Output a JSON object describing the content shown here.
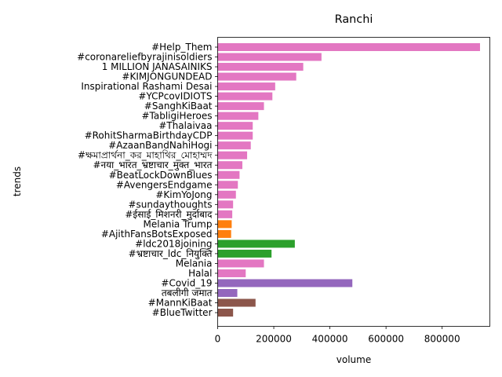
{
  "chart_data": {
    "type": "bar",
    "orientation": "horizontal",
    "title": "Ranchi",
    "xlabel": "volume",
    "ylabel": "trends",
    "xlim": [
      0,
      970000
    ],
    "xticks": [
      0,
      200000,
      400000,
      600000,
      800000
    ],
    "xtick_labels": [
      "0",
      "200000",
      "400000",
      "600000",
      "800000"
    ],
    "grid": false,
    "bars": [
      {
        "label": "#Help_Them",
        "value": 935000,
        "color": "#e377c2"
      },
      {
        "label": "#coronareliefbyrajinisoldiers",
        "value": 370000,
        "color": "#e377c2"
      },
      {
        "label": "1 MILLION JANASAINIKS",
        "value": 305000,
        "color": "#e377c2"
      },
      {
        "label": "#KIMJONGUNDEAD",
        "value": 280000,
        "color": "#e377c2"
      },
      {
        "label": "Inspirational Rashami Desai",
        "value": 205000,
        "color": "#e377c2"
      },
      {
        "label": "#YCPcovIDIOTS",
        "value": 195000,
        "color": "#e377c2"
      },
      {
        "label": "#SanghKiBaat",
        "value": 165000,
        "color": "#e377c2"
      },
      {
        "label": "#TabligiHeroes",
        "value": 145000,
        "color": "#e377c2"
      },
      {
        "label": "#Thalaivaa",
        "value": 125000,
        "color": "#e377c2"
      },
      {
        "label": "#RohitSharmaBirthdayCDP",
        "value": 125000,
        "color": "#e377c2"
      },
      {
        "label": "#AzaanBandNahiHogi",
        "value": 118000,
        "color": "#e377c2"
      },
      {
        "label": "#ক্ষমাপ্রার্থনা_কর_মাহাথির_মোহাম্মদ",
        "value": 105000,
        "color": "#e377c2"
      },
      {
        "label": "#नया_भारत_भ्रष्टाचार_मुक्त_भारत",
        "value": 88000,
        "color": "#e377c2"
      },
      {
        "label": "#BeatLockDownBlues",
        "value": 78000,
        "color": "#e377c2"
      },
      {
        "label": "#AvengersEndgame",
        "value": 72000,
        "color": "#e377c2"
      },
      {
        "label": "#KimYoJong",
        "value": 65000,
        "color": "#e377c2"
      },
      {
        "label": "#sundaythoughts",
        "value": 55000,
        "color": "#e377c2"
      },
      {
        "label": "#ईसाई_मिशनरी_मुर्दाबाद",
        "value": 52000,
        "color": "#e377c2"
      },
      {
        "label": "Melania Trump",
        "value": 50000,
        "color": "#ff7f0e"
      },
      {
        "label": "#AjithFansBotsExposed",
        "value": 48000,
        "color": "#ff7f0e"
      },
      {
        "label": "#ldc2018joining",
        "value": 275000,
        "color": "#2ca02c"
      },
      {
        "label": "#भ्रष्टाचार_ldc_नियुक्ति",
        "value": 192000,
        "color": "#2ca02c"
      },
      {
        "label": "Melania",
        "value": 165000,
        "color": "#e377c2"
      },
      {
        "label": "Halal",
        "value": 100000,
        "color": "#e377c2"
      },
      {
        "label": "#Covid_19",
        "value": 480000,
        "color": "#9467bd"
      },
      {
        "label": "तबलीगी जमात",
        "value": 70000,
        "color": "#9467bd"
      },
      {
        "label": "#MannKiBaat",
        "value": 135000,
        "color": "#8c564b"
      },
      {
        "label": "#BlueTwitter",
        "value": 55000,
        "color": "#8c564b"
      }
    ]
  }
}
